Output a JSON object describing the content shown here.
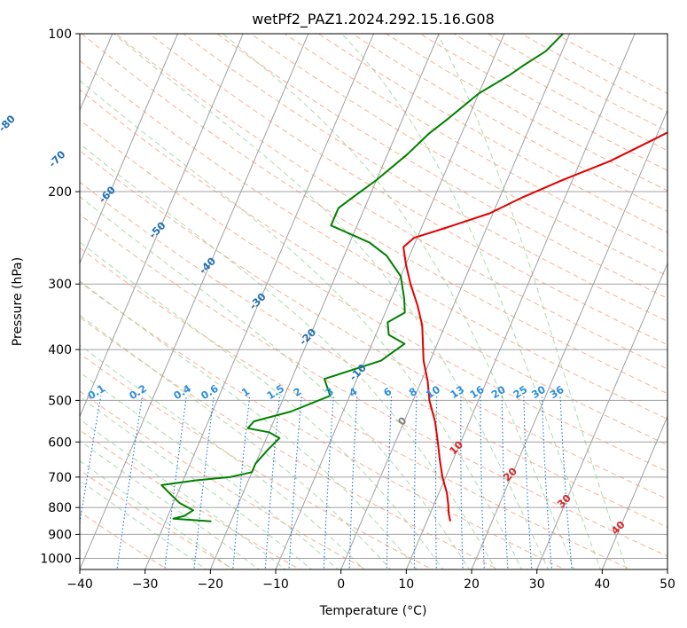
{
  "chart_data": {
    "type": "line",
    "title": "wetPf2_PAZ1.2024.292.15.16.G08",
    "xlabel": "Temperature (°C)",
    "ylabel": "Pressure (hPa)",
    "xlim": [
      -40,
      50
    ],
    "ylim": [
      1050,
      100
    ],
    "y_scale": "log",
    "x_ticks": [
      -40,
      -30,
      -20,
      -10,
      0,
      10,
      20,
      30,
      40,
      50
    ],
    "y_ticks": [
      100,
      200,
      300,
      400,
      500,
      600,
      700,
      800,
      900,
      1000
    ],
    "grid": true,
    "series": [
      {
        "color": "#e00000",
        "x": [
          13.6,
          12.8,
          12.2,
          11.2,
          9.5,
          8.0,
          6.5,
          4.8,
          2.5,
          1.0,
          -1.0,
          -2.2,
          -3.5,
          -5.5,
          -8.0,
          -10.0,
          -11.5,
          -10.5,
          -6.5,
          -0.5,
          3.5,
          8.5,
          14.5,
          19.5,
          24.8,
          28.0,
          30.0,
          33.0
        ],
        "y": [
          850,
          820,
          790,
          750,
          700,
          650,
          600,
          550,
          500,
          460,
          420,
          390,
          360,
          330,
          300,
          275,
          255,
          245,
          235,
          220,
          205,
          190,
          175,
          160,
          145,
          130,
          120,
          100
        ]
      },
      {
        "color": "#008000",
        "x": [
          -23.0,
          -29.0,
          -27.5,
          -26.5,
          -29.0,
          -31.0,
          -33.0,
          -28.0,
          -23.0,
          -20.0,
          -20.0,
          -19.0,
          -18.0,
          -20.0,
          -23.5,
          -23.0,
          -18.0,
          -13.0,
          -15.0,
          -7.5,
          -5.0,
          -8.0,
          -9.0,
          -7.0,
          -8.0,
          -10.0,
          -13.5,
          -17.0,
          -24.0,
          -24.0,
          -22.0,
          -20.0,
          -17.0,
          -15.0,
          -13.0,
          -10.0,
          -6.5,
          -5.0,
          -2.5,
          -1.0
        ],
        "y": [
          850,
          840,
          830,
          810,
          785,
          755,
          725,
          710,
          700,
          685,
          660,
          620,
          590,
          575,
          565,
          548,
          525,
          490,
          455,
          420,
          390,
          375,
          355,
          340,
          320,
          290,
          265,
          250,
          232,
          215,
          202,
          190,
          170,
          155,
          145,
          130,
          120,
          115,
          108,
          100
        ]
      }
    ],
    "isotherm_labels": [
      "-100",
      "-90",
      "-80",
      "-70",
      "-60",
      "-50",
      "-40",
      "-30",
      "-20",
      "-10",
      "0",
      "10",
      "20",
      "30",
      "40"
    ],
    "mixing_ratio_labels": [
      "0.1",
      "0.2",
      "0.4",
      "0.6",
      "1",
      "1.5",
      "2",
      "3",
      "4",
      "6",
      "8",
      "10",
      "13",
      "16",
      "20",
      "25",
      "30",
      "36"
    ],
    "colors": {
      "temperature": "#e00000",
      "dewpoint": "#008000",
      "dry_adiabat": "#f4a582",
      "moist_adiabat": "#8fd08f",
      "mixing_ratio": "#1f77d4",
      "isotherm": "#a0a0a0",
      "isotherm_label_cold": "#1f6fb4",
      "isotherm_label_warm": "#d62728",
      "isotherm_label_zero": "#808080",
      "mixing_ratio_label": "#2c8fe0"
    }
  }
}
